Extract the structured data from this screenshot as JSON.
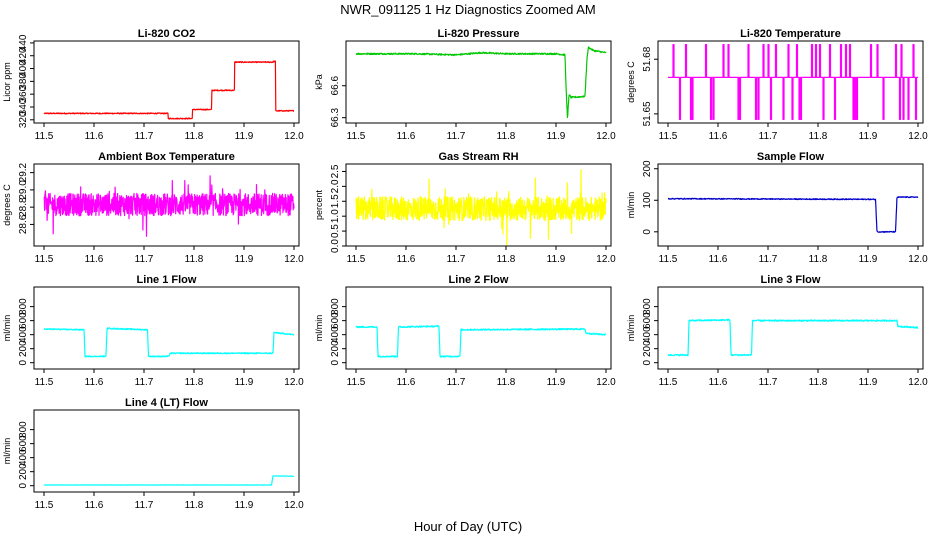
{
  "suptitle": "NWR_091125  1 Hz Diagnostics Zoomed AM",
  "xlabel": "Hour of Day (UTC)",
  "chart_data": [
    {
      "type": "line",
      "title": "Li-820 CO2",
      "ylabel": "Licor ppm",
      "color": "#ff0000",
      "xlim": [
        11.48,
        12.01
      ],
      "ylim": [
        315,
        443
      ],
      "yticks": [
        320,
        340,
        360,
        380,
        400,
        420,
        440
      ],
      "xticks": [
        11.5,
        11.6,
        11.7,
        11.8,
        11.9,
        12.0
      ],
      "x": [
        11.5,
        11.748,
        11.748,
        11.797,
        11.797,
        11.835,
        11.835,
        11.881,
        11.881,
        11.958,
        11.958,
        11.963,
        11.963,
        12.0
      ],
      "y": [
        330,
        330,
        322,
        322,
        336,
        336,
        366,
        366,
        410,
        410,
        411,
        411,
        334,
        334
      ],
      "noise": 0.8
    },
    {
      "type": "line",
      "title": "Li-820 Pressure",
      "ylabel": "kPa",
      "color": "#00c800",
      "xlim": [
        11.48,
        12.01
      ],
      "ylim": [
        66.25,
        67.02
      ],
      "yticks": [
        66.3,
        66.6
      ],
      "xticks": [
        11.5,
        11.6,
        11.7,
        11.8,
        11.9,
        12.0
      ],
      "x": [
        11.5,
        11.62,
        11.7,
        11.75,
        11.8,
        11.9,
        11.918,
        11.92,
        11.923,
        11.926,
        11.93,
        11.958,
        11.962,
        11.965,
        11.975,
        12.0
      ],
      "y": [
        66.9,
        66.9,
        66.89,
        66.91,
        66.9,
        66.9,
        66.89,
        66.6,
        66.28,
        66.52,
        66.49,
        66.5,
        66.86,
        66.96,
        66.93,
        66.91
      ],
      "noise": 0.007
    },
    {
      "type": "line",
      "title": "Li-820 Temperature",
      "ylabel": "degrees C",
      "color": "#ff00ff",
      "xlim": [
        11.48,
        12.01
      ],
      "ylim": [
        51.645,
        51.69
      ],
      "yticks": [
        51.65,
        51.68
      ],
      "xticks": [
        11.5,
        11.6,
        11.7,
        11.8,
        11.9,
        12.0
      ],
      "x": [
        11.5,
        12.0
      ],
      "y": [
        51.67,
        51.67
      ],
      "spikes_up": [
        11.51,
        11.535,
        11.575,
        11.61,
        11.62,
        11.66,
        11.69,
        11.7,
        11.715,
        11.74,
        11.757,
        11.787,
        11.795,
        11.803,
        11.823,
        11.845,
        11.855,
        11.863,
        11.905,
        11.918,
        11.955,
        11.966,
        11.99
      ],
      "spikes_down": [
        11.523,
        11.545,
        11.548,
        11.585,
        11.59,
        11.64,
        11.643,
        11.675,
        11.68,
        11.705,
        11.73,
        11.748,
        11.762,
        11.765,
        11.81,
        11.833,
        11.87,
        11.873,
        11.877,
        11.93,
        11.963,
        11.97,
        11.98,
        11.995
      ],
      "spike_top": 51.688,
      "spike_bottom": 51.647
    },
    {
      "type": "noise",
      "title": "Ambient Box Temperature",
      "ylabel": "degrees C",
      "color": "#ff00ff",
      "xlim": [
        11.48,
        12.01
      ],
      "ylim": [
        28.35,
        29.3
      ],
      "yticks": [
        28.6,
        28.8,
        29.0,
        29.2
      ],
      "xticks": [
        11.5,
        11.6,
        11.7,
        11.8,
        11.9,
        12.0
      ],
      "x": [
        11.5,
        12.0
      ],
      "y": [
        28.83,
        28.83
      ],
      "noise": 0.13
    },
    {
      "type": "noise",
      "title": "Gas Stream RH",
      "ylabel": "percent",
      "color": "#ffff00",
      "xlim": [
        11.48,
        12.01
      ],
      "ylim": [
        0,
        2.75
      ],
      "yticks": [
        0.0,
        0.5,
        1.0,
        1.5,
        2.0,
        2.5
      ],
      "xticks": [
        11.5,
        11.6,
        11.7,
        11.8,
        11.9,
        12.0
      ],
      "x": [
        11.5,
        12.0
      ],
      "y": [
        1.25,
        1.25
      ],
      "noise": 0.4
    },
    {
      "type": "line",
      "title": "Sample Flow",
      "ylabel": "ml/min",
      "color": "#0000cc",
      "xlim": [
        11.48,
        12.01
      ],
      "ylim": [
        -45,
        215
      ],
      "yticks": [
        0,
        100,
        200
      ],
      "xticks": [
        11.5,
        11.6,
        11.7,
        11.8,
        11.9,
        12.0
      ],
      "x": [
        11.5,
        11.915,
        11.918,
        11.955,
        11.958,
        12.0
      ],
      "y": [
        105,
        103,
        0,
        0,
        110,
        110
      ],
      "noise": 1.5
    },
    {
      "type": "line",
      "title": "Line 1 Flow",
      "ylabel": "ml/min",
      "color": "#00ffff",
      "xlim": [
        11.48,
        12.01
      ],
      "ylim": [
        -90,
        1080
      ],
      "yticks": [
        0,
        200,
        400,
        600,
        800
      ],
      "xticks": [
        11.5,
        11.6,
        11.7,
        11.8,
        11.9,
        12.0
      ],
      "x": [
        11.5,
        11.58,
        11.582,
        11.624,
        11.626,
        11.707,
        11.709,
        11.75,
        11.752,
        11.958,
        11.96,
        12.0
      ],
      "y": [
        480,
        470,
        90,
        90,
        490,
        470,
        90,
        90,
        135,
        135,
        430,
        400
      ],
      "noise": 8
    },
    {
      "type": "line",
      "title": "Line 2 Flow",
      "ylabel": "ml/min",
      "color": "#00ffff",
      "xlim": [
        11.48,
        12.01
      ],
      "ylim": [
        -90,
        1080
      ],
      "yticks": [
        0,
        200,
        400,
        600,
        800
      ],
      "xticks": [
        11.5,
        11.6,
        11.7,
        11.8,
        11.9,
        12.0
      ],
      "x": [
        11.5,
        11.542,
        11.544,
        11.583,
        11.585,
        11.666,
        11.668,
        11.708,
        11.71,
        11.958,
        11.96,
        12.0
      ],
      "y": [
        510,
        510,
        90,
        90,
        510,
        520,
        90,
        90,
        470,
        480,
        420,
        400
      ],
      "noise": 10
    },
    {
      "type": "line",
      "title": "Line 3 Flow",
      "ylabel": "ml/min",
      "color": "#00ffff",
      "xlim": [
        11.48,
        12.01
      ],
      "ylim": [
        -90,
        1080
      ],
      "yticks": [
        0,
        200,
        400,
        600,
        800
      ],
      "xticks": [
        11.5,
        11.6,
        11.7,
        11.8,
        11.9,
        12.0
      ],
      "x": [
        11.5,
        11.54,
        11.542,
        11.624,
        11.626,
        11.667,
        11.669,
        11.958,
        11.96,
        12.0
      ],
      "y": [
        110,
        110,
        600,
        610,
        110,
        110,
        600,
        600,
        520,
        500
      ],
      "noise": 10
    },
    {
      "type": "line",
      "title": "Line 4 (LT) Flow",
      "ylabel": "ml/min",
      "color": "#00ffff",
      "xlim": [
        11.48,
        12.01
      ],
      "ylim": [
        -90,
        1080
      ],
      "yticks": [
        0,
        200,
        400,
        600,
        800
      ],
      "xticks": [
        11.5,
        11.6,
        11.7,
        11.8,
        11.9,
        12.0
      ],
      "x": [
        11.5,
        11.955,
        11.958,
        12.0
      ],
      "y": [
        10,
        10,
        140,
        135
      ],
      "noise": 2
    }
  ]
}
